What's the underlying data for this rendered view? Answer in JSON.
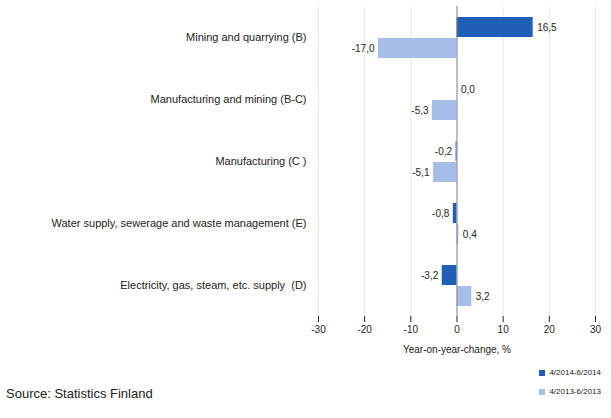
{
  "chart_data": {
    "type": "bar",
    "orientation": "horizontal",
    "categories": [
      "Mining and quarrying (B)",
      "Manufacturing and mining (B-C)",
      "Manufacturing (C )",
      "Water supply, sewerage and waste management (E)",
      "Electricity, gas, steam, etc. supply  (D)"
    ],
    "series": [
      {
        "name": "4/2014-6/2014",
        "color": "#1f5fb5",
        "values": [
          16.5,
          0.0,
          -0.2,
          -0.8,
          -3.2
        ],
        "value_labels": [
          "16,5",
          "0,0",
          "-0,2",
          "-0,8",
          "-3,2"
        ]
      },
      {
        "name": "4/2013-6/2013",
        "color": "#a6bce9",
        "values": [
          -17.0,
          -5.3,
          -5.1,
          0.4,
          3.2
        ],
        "value_labels": [
          "-17,0",
          "-5,3",
          "-5,1",
          "0,4",
          "3,2"
        ]
      }
    ],
    "x_label": "Year-on-year-change, %",
    "xlim": [
      -30,
      30
    ],
    "xticks": [
      -30,
      -20,
      -10,
      0,
      10,
      20,
      30
    ],
    "grid": true,
    "data_labels": true,
    "legend": "bottom-right",
    "caption": "Source: Statistics Finland"
  }
}
